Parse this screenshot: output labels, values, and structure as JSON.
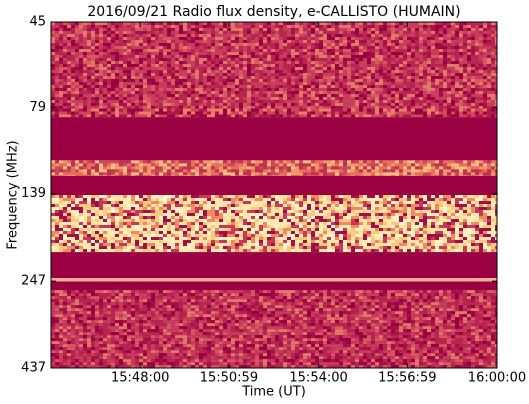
{
  "chart_data": {
    "type": "spectrogram",
    "title": "2016/09/21  Radio flux density, e-CALLISTO (HUMAIN)",
    "x_label": "Time (UT)",
    "y_label": "Frequency (MHz)",
    "xlim": [
      "15:45:00",
      "16:00:00"
    ],
    "xticks": [
      "15:48:00",
      "15:50:59",
      "15:54:00",
      "15:56:59",
      "16:00:00"
    ],
    "ylim": [
      45,
      437
    ],
    "yticks": [
      45,
      79,
      139,
      247,
      437
    ],
    "y_log": true,
    "y_inverted": true,
    "grid": false
  }
}
